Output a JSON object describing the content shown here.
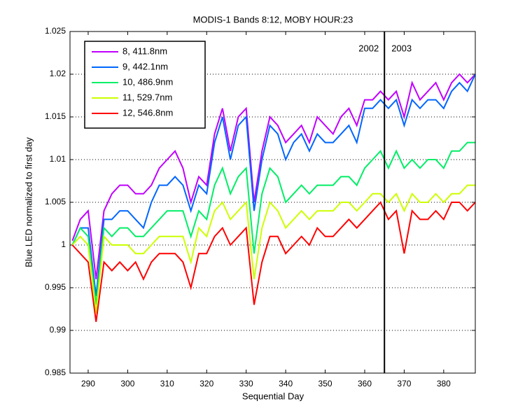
{
  "chart_data": {
    "type": "line",
    "title": "MODIS-1 Bands 8:12, MOBY HOUR:23",
    "xlabel": "Sequential Day",
    "ylabel": "Blue LED normalized to first day",
    "x": [
      286,
      288,
      290,
      292,
      294,
      296,
      298,
      300,
      302,
      304,
      306,
      308,
      310,
      312,
      314,
      316,
      318,
      320,
      322,
      324,
      326,
      328,
      330,
      332,
      334,
      336,
      338,
      340,
      342,
      344,
      346,
      348,
      350,
      352,
      354,
      356,
      358,
      360,
      362,
      364,
      366,
      368,
      370,
      372,
      374,
      376,
      378,
      380,
      382,
      384,
      386,
      388
    ],
    "series": [
      {
        "name": "8, 411.8nm",
        "color": "#c000ff",
        "values": [
          1.0005,
          1.003,
          1.004,
          0.996,
          1.004,
          1.006,
          1.007,
          1.007,
          1.006,
          1.006,
          1.007,
          1.009,
          1.01,
          1.011,
          1.009,
          1.005,
          1.008,
          1.007,
          1.013,
          1.016,
          1.011,
          1.015,
          1.016,
          1.005,
          1.011,
          1.015,
          1.014,
          1.012,
          1.013,
          1.014,
          1.012,
          1.015,
          1.014,
          1.013,
          1.015,
          1.016,
          1.014,
          1.017,
          1.017,
          1.018,
          1.017,
          1.018,
          1.015,
          1.019,
          1.017,
          1.018,
          1.019,
          1.017,
          1.019,
          1.02,
          1.019,
          1.02
        ]
      },
      {
        "name": "9, 442.1nm",
        "color": "#0066ff",
        "values": [
          1.0,
          1.002,
          1.002,
          0.994,
          1.003,
          1.003,
          1.004,
          1.004,
          1.003,
          1.002,
          1.005,
          1.007,
          1.007,
          1.008,
          1.007,
          1.004,
          1.007,
          1.006,
          1.012,
          1.015,
          1.01,
          1.014,
          1.015,
          1.004,
          1.01,
          1.014,
          1.013,
          1.01,
          1.012,
          1.013,
          1.011,
          1.013,
          1.012,
          1.012,
          1.013,
          1.014,
          1.012,
          1.016,
          1.016,
          1.017,
          1.016,
          1.017,
          1.014,
          1.017,
          1.016,
          1.017,
          1.017,
          1.016,
          1.018,
          1.019,
          1.018,
          1.02
        ]
      },
      {
        "name": "10, 486.9nm",
        "color": "#00ee66",
        "values": [
          1.0,
          1.002,
          1.001,
          0.993,
          1.002,
          1.001,
          1.002,
          1.002,
          1.001,
          1.001,
          1.002,
          1.003,
          1.004,
          1.004,
          1.004,
          1.001,
          1.004,
          1.003,
          1.007,
          1.009,
          1.006,
          1.008,
          1.009,
          0.999,
          1.006,
          1.009,
          1.008,
          1.005,
          1.006,
          1.007,
          1.006,
          1.007,
          1.007,
          1.007,
          1.008,
          1.008,
          1.007,
          1.009,
          1.01,
          1.011,
          1.009,
          1.011,
          1.009,
          1.01,
          1.009,
          1.01,
          1.01,
          1.009,
          1.011,
          1.011,
          1.012,
          1.012
        ]
      },
      {
        "name": "11, 529.7nm",
        "color": "#ccff00",
        "values": [
          1.0,
          1.001,
          1.0,
          0.992,
          1.001,
          1.0,
          1.0,
          1.0,
          0.999,
          0.999,
          1.0,
          1.001,
          1.001,
          1.001,
          1.001,
          0.998,
          1.002,
          1.001,
          1.004,
          1.005,
          1.003,
          1.004,
          1.005,
          0.996,
          1.002,
          1.005,
          1.004,
          1.002,
          1.003,
          1.004,
          1.003,
          1.004,
          1.004,
          1.004,
          1.005,
          1.005,
          1.004,
          1.005,
          1.006,
          1.006,
          1.005,
          1.006,
          1.004,
          1.006,
          1.005,
          1.005,
          1.006,
          1.005,
          1.006,
          1.006,
          1.007,
          1.007
        ]
      },
      {
        "name": "12, 546.8nm",
        "color": "#ff0000",
        "values": [
          1.0,
          0.999,
          0.998,
          0.991,
          0.998,
          0.997,
          0.998,
          0.997,
          0.998,
          0.996,
          0.998,
          0.999,
          0.999,
          0.999,
          0.998,
          0.995,
          0.999,
          0.999,
          1.001,
          1.002,
          1.0,
          1.001,
          1.002,
          0.993,
          0.998,
          1.001,
          1.001,
          0.999,
          1.0,
          1.001,
          1.0,
          1.002,
          1.001,
          1.001,
          1.002,
          1.003,
          1.002,
          1.003,
          1.004,
          1.005,
          1.003,
          1.004,
          0.999,
          1.004,
          1.003,
          1.003,
          1.004,
          1.003,
          1.005,
          1.005,
          1.004,
          1.005
        ]
      }
    ],
    "xlim": [
      285.4,
      388
    ],
    "xticks": [
      290,
      300,
      310,
      320,
      330,
      340,
      350,
      360,
      370,
      380
    ],
    "ylim": [
      0.985,
      1.025
    ],
    "yticks": [
      0.985,
      0.99,
      0.995,
      1,
      1.005,
      1.01,
      1.015,
      1.02,
      1.025
    ],
    "grid": "y",
    "legend": "upper left",
    "vline": 365,
    "annotations": [
      "2002",
      "2003"
    ]
  }
}
